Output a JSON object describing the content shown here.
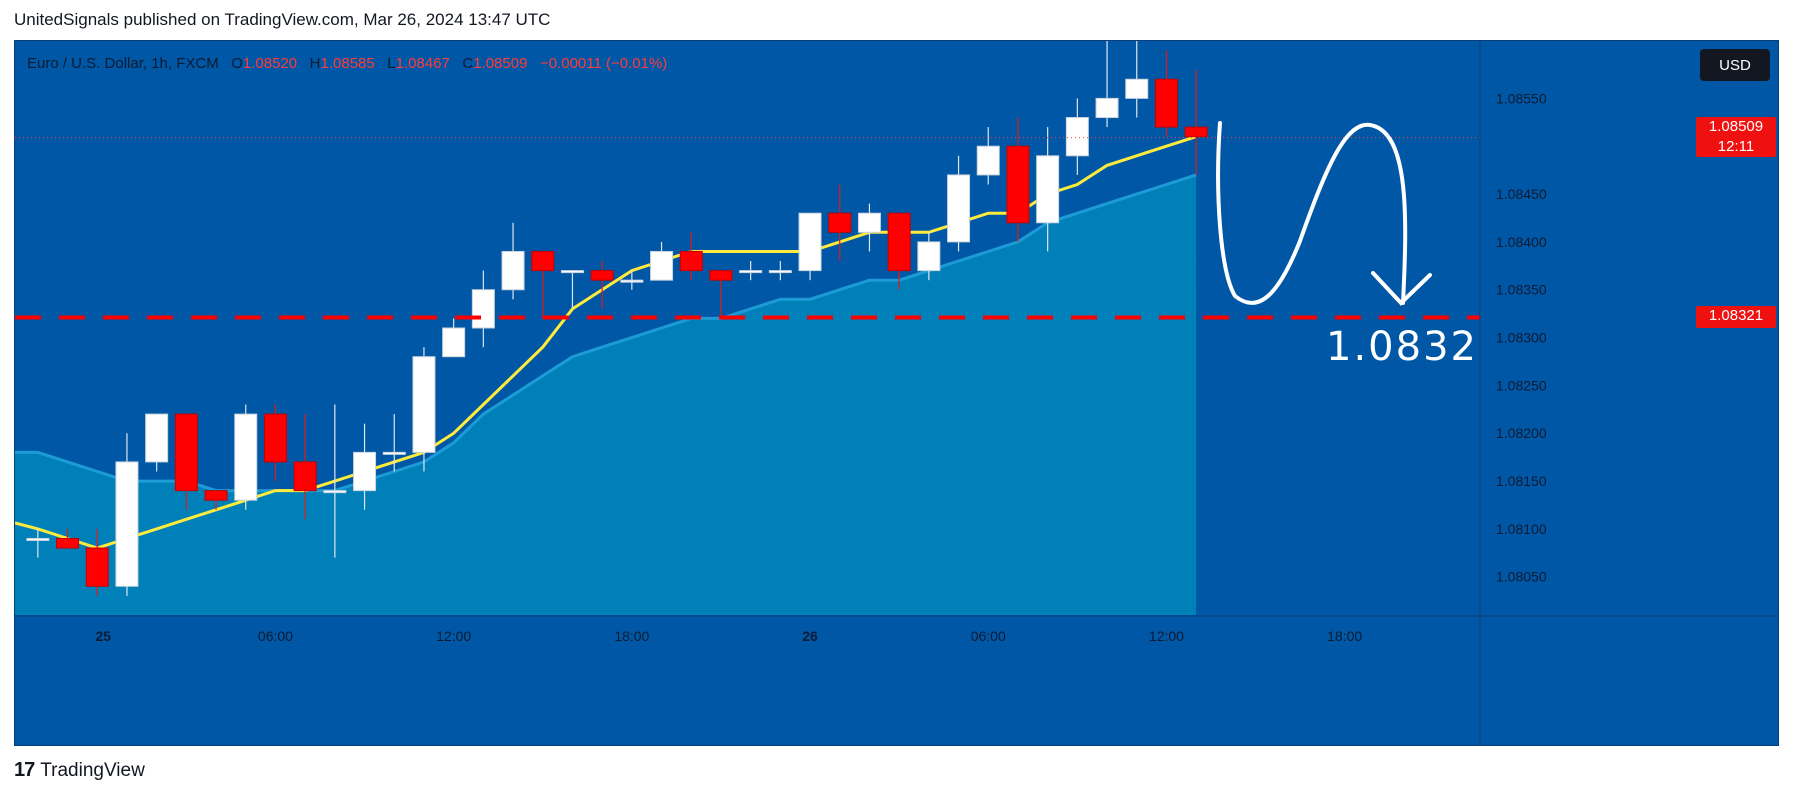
{
  "header": {
    "text": "UnitedSignals published on TradingView.com, Mar 26, 2024 13:47 UTC"
  },
  "legend": {
    "symbol": "Euro / U.S. Dollar, 1h, FXCM",
    "open_label": "O",
    "open": "1.08520",
    "high_label": "H",
    "high": "1.08585",
    "low_label": "L",
    "low": "1.08467",
    "close_label": "C",
    "close": "1.08509",
    "change": "−0.00011 (−0.01%)"
  },
  "currency_button": "USD",
  "last_price_tag": {
    "price": "1.08509",
    "countdown": "12:11"
  },
  "target_tag": {
    "price": "1.08321"
  },
  "annotation": {
    "target_text": "1.0832"
  },
  "footer": {
    "brand": "TradingView",
    "logo": "17"
  },
  "colors": {
    "background": "#0057a5",
    "up": "#ffffff",
    "down": "#ff0000",
    "ma_fast": "#ffeb3b",
    "ma_slow_fill": "#0083b8",
    "target_line": "#ff0000"
  },
  "chart_data": {
    "type": "candlestick",
    "y_ticks": [
      "1.08550",
      "1.08450",
      "1.08400",
      "1.08350",
      "1.08300",
      "1.08250",
      "1.08200",
      "1.08150",
      "1.08100",
      "1.08050"
    ],
    "x_ticks": [
      "25",
      "06:00",
      "12:00",
      "18:00",
      "26",
      "06:00",
      "12:00",
      "18:00"
    ],
    "ylim": [
      1.0801,
      1.0861
    ],
    "target_level": 1.08321,
    "last_price": 1.08509,
    "candles": [
      {
        "o": 1.0809,
        "h": 1.081,
        "l": 1.0807,
        "c": 1.0809
      },
      {
        "o": 1.0809,
        "h": 1.081,
        "l": 1.0808,
        "c": 1.0808
      },
      {
        "o": 1.0808,
        "h": 1.081,
        "l": 1.0803,
        "c": 1.0804
      },
      {
        "o": 1.0804,
        "h": 1.082,
        "l": 1.0803,
        "c": 1.0817
      },
      {
        "o": 1.0817,
        "h": 1.0822,
        "l": 1.0816,
        "c": 1.0822
      },
      {
        "o": 1.0822,
        "h": 1.0822,
        "l": 1.0812,
        "c": 1.0814
      },
      {
        "o": 1.0814,
        "h": 1.0814,
        "l": 1.0812,
        "c": 1.0813
      },
      {
        "o": 1.0813,
        "h": 1.0823,
        "l": 1.0812,
        "c": 1.0822
      },
      {
        "o": 1.0822,
        "h": 1.0823,
        "l": 1.0815,
        "c": 1.0817
      },
      {
        "o": 1.0817,
        "h": 1.0822,
        "l": 1.0811,
        "c": 1.0814
      },
      {
        "o": 1.0814,
        "h": 1.0823,
        "l": 1.0807,
        "c": 1.0814
      },
      {
        "o": 1.0814,
        "h": 1.0821,
        "l": 1.0812,
        "c": 1.0818
      },
      {
        "o": 1.0818,
        "h": 1.0822,
        "l": 1.0816,
        "c": 1.0818
      },
      {
        "o": 1.0818,
        "h": 1.0829,
        "l": 1.0816,
        "c": 1.0828
      },
      {
        "o": 1.0828,
        "h": 1.0832,
        "l": 1.0828,
        "c": 1.0831
      },
      {
        "o": 1.0831,
        "h": 1.0837,
        "l": 1.0829,
        "c": 1.0835
      },
      {
        "o": 1.0835,
        "h": 1.0842,
        "l": 1.0834,
        "c": 1.0839
      },
      {
        "o": 1.0839,
        "h": 1.0839,
        "l": 1.0832,
        "c": 1.0837
      },
      {
        "o": 1.0837,
        "h": 1.0837,
        "l": 1.0833,
        "c": 1.0837
      },
      {
        "o": 1.0837,
        "h": 1.0838,
        "l": 1.0833,
        "c": 1.0836
      },
      {
        "o": 1.0836,
        "h": 1.0837,
        "l": 1.0835,
        "c": 1.0836
      },
      {
        "o": 1.0836,
        "h": 1.084,
        "l": 1.0836,
        "c": 1.0839
      },
      {
        "o": 1.0839,
        "h": 1.0841,
        "l": 1.0836,
        "c": 1.0837
      },
      {
        "o": 1.0837,
        "h": 1.0837,
        "l": 1.0832,
        "c": 1.0836
      },
      {
        "o": 1.0837,
        "h": 1.0838,
        "l": 1.0836,
        "c": 1.0837
      },
      {
        "o": 1.0837,
        "h": 1.0838,
        "l": 1.0836,
        "c": 1.0837
      },
      {
        "o": 1.0837,
        "h": 1.0843,
        "l": 1.0836,
        "c": 1.0843
      },
      {
        "o": 1.0843,
        "h": 1.0846,
        "l": 1.0838,
        "c": 1.0841
      },
      {
        "o": 1.0841,
        "h": 1.0844,
        "l": 1.0839,
        "c": 1.0843
      },
      {
        "o": 1.0843,
        "h": 1.0843,
        "l": 1.0835,
        "c": 1.0837
      },
      {
        "o": 1.0837,
        "h": 1.0841,
        "l": 1.0836,
        "c": 1.084
      },
      {
        "o": 1.084,
        "h": 1.0849,
        "l": 1.0839,
        "c": 1.0847
      },
      {
        "o": 1.0847,
        "h": 1.0852,
        "l": 1.0846,
        "c": 1.085
      },
      {
        "o": 1.085,
        "h": 1.0853,
        "l": 1.084,
        "c": 1.0842
      },
      {
        "o": 1.0842,
        "h": 1.0852,
        "l": 1.0839,
        "c": 1.0849
      },
      {
        "o": 1.0849,
        "h": 1.0855,
        "l": 1.0847,
        "c": 1.0853
      },
      {
        "o": 1.0853,
        "h": 1.0861,
        "l": 1.0852,
        "c": 1.0855
      },
      {
        "o": 1.0855,
        "h": 1.0861,
        "l": 1.0853,
        "c": 1.0857
      },
      {
        "o": 1.0857,
        "h": 1.086,
        "l": 1.0851,
        "c": 1.0852
      },
      {
        "o": 1.0852,
        "h": 1.0858,
        "l": 1.0847,
        "c": 1.0851
      }
    ],
    "ma_fast": [
      1.081,
      1.0809,
      1.0808,
      1.0809,
      1.081,
      1.0811,
      1.0812,
      1.0813,
      1.0814,
      1.0814,
      1.0815,
      1.0816,
      1.0817,
      1.0818,
      1.082,
      1.0823,
      1.0826,
      1.0829,
      1.0833,
      1.0835,
      1.0837,
      1.0838,
      1.0839,
      1.0839,
      1.0839,
      1.0839,
      1.0839,
      1.084,
      1.0841,
      1.0841,
      1.0841,
      1.0842,
      1.0843,
      1.0843,
      1.0845,
      1.0846,
      1.0848,
      1.0849,
      1.085,
      1.0851
    ],
    "ma_slow": [
      1.0818,
      1.0817,
      1.0816,
      1.0815,
      1.0815,
      1.0815,
      1.0814,
      1.0814,
      1.0814,
      1.0814,
      1.0814,
      1.0815,
      1.0816,
      1.0817,
      1.0819,
      1.0822,
      1.0824,
      1.0826,
      1.0828,
      1.0829,
      1.083,
      1.0831,
      1.0832,
      1.0832,
      1.0833,
      1.0834,
      1.0834,
      1.0835,
      1.0836,
      1.0836,
      1.0837,
      1.0838,
      1.0839,
      1.084,
      1.0842,
      1.0843,
      1.0844,
      1.0845,
      1.0846,
      1.0847
    ]
  }
}
